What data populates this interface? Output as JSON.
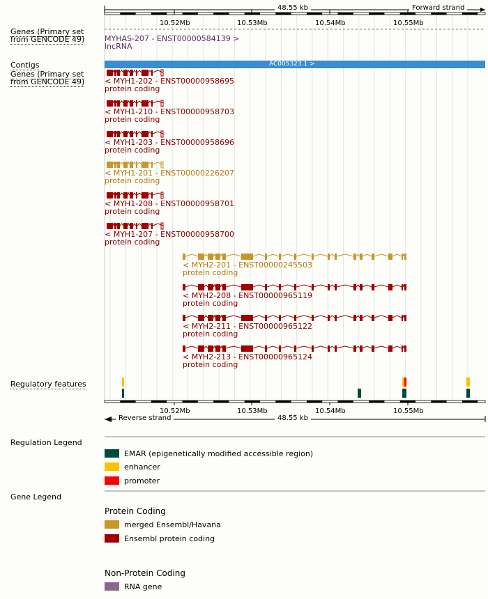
{
  "ruler": {
    "width_label": "48.55 kb",
    "forward_strand": "Forward strand",
    "reverse_strand": "Reverse strand",
    "ticks": [
      "10.52Mb",
      "10.53Mb",
      "10.54Mb",
      "10.55Mb"
    ]
  },
  "tracks": {
    "genes_top": "Genes (Primary set from GENCODE 49)",
    "contigs": "Contigs",
    "genes_bottom": "Genes (Primary set from GENCODE 49)",
    "regulatory": "Regulatory features"
  },
  "lncrna": {
    "name": "MYHAS-207 - ENST00000584139 >",
    "type": "lncRNA"
  },
  "contig": {
    "name": "AC005323.1 >"
  },
  "transcripts": [
    {
      "name": "< MYH1-202 - ENST00000958695",
      "type": "protein coding",
      "color": "#a00000"
    },
    {
      "name": "< MYH1-210 - ENST00000958703",
      "type": "protein coding",
      "color": "#a00000"
    },
    {
      "name": "< MYH1-203 - ENST00000958696",
      "type": "protein coding",
      "color": "#a00000"
    },
    {
      "name": "< MYH1-201 - ENST00000226207",
      "type": "protein coding",
      "color": "#c8962a"
    },
    {
      "name": "< MYH1-208 - ENST00000958701",
      "type": "protein coding",
      "color": "#a00000"
    },
    {
      "name": "< MYH1-207 - ENST00000958700",
      "type": "protein coding",
      "color": "#a00000"
    },
    {
      "name": "< MYH2-201 - ENST00000245503",
      "type": "protein coding",
      "color": "#c8962a"
    },
    {
      "name": "< MYH2-208 - ENST00000965119",
      "type": "protein coding",
      "color": "#a00000"
    },
    {
      "name": "< MYH2-211 - ENST00000965122",
      "type": "protein coding",
      "color": "#a00000"
    },
    {
      "name": "< MYH2-213 - ENST00000965124",
      "type": "protein coding",
      "color": "#a00000"
    }
  ],
  "legend": {
    "regulation_title": "Regulation Legend",
    "regulation": [
      {
        "label": "EMAR (epigenetically modified accessible region)",
        "color": "#00493d"
      },
      {
        "label": "enhancer",
        "color": "#f8c400"
      },
      {
        "label": "promoter",
        "color": "#ff0000"
      }
    ],
    "gene_title": "Gene Legend",
    "protein_coding_title": "Protein Coding",
    "protein_coding": [
      {
        "label": "merged Ensembl/Havana",
        "color": "#c8962a"
      },
      {
        "label": "Ensembl protein coding",
        "color": "#a00000"
      }
    ],
    "non_protein_coding_title": "Non-Protein Coding",
    "non_protein_coding": [
      {
        "label": "RNA gene",
        "color": "#8b6790"
      }
    ]
  },
  "colors": {
    "contig_blue": "#3a8ecf",
    "lncrna_purple": "#5a2b67"
  }
}
